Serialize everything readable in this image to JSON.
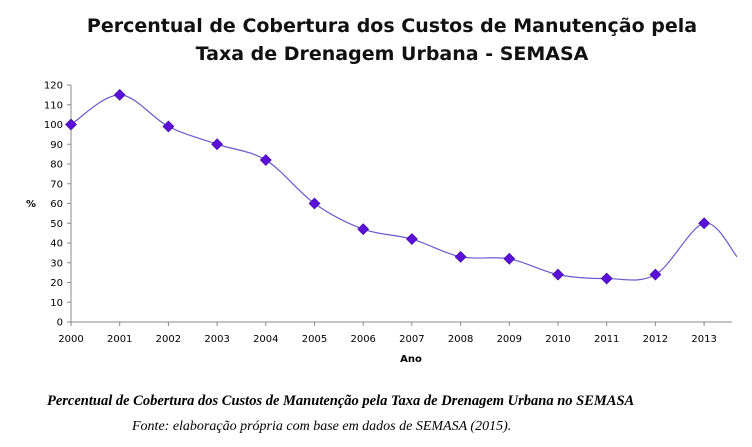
{
  "chart_data": {
    "type": "line",
    "title_lines": [
      "Percentual de Cobertura dos Custos de Manutenção pela",
      "Taxa de Drenagem Urbana - SEMASA"
    ],
    "xlabel": "Ano",
    "ylabel": "%",
    "categories": [
      "2000",
      "2001",
      "2002",
      "2003",
      "2004",
      "2005",
      "2006",
      "2007",
      "2008",
      "2009",
      "2010",
      "2011",
      "2012",
      "2013"
    ],
    "x_labels_shown": [
      "2000",
      "2001",
      "2002",
      "2003",
      "2004",
      "2005",
      "2006",
      "2007",
      "2008",
      "2009",
      "2010",
      "2011",
      "2012",
      "2013"
    ],
    "y_ticks": [
      0,
      10,
      20,
      30,
      40,
      50,
      60,
      70,
      80,
      90,
      100,
      110,
      120
    ],
    "ylim": [
      0,
      120
    ],
    "grid": false,
    "legend": "none",
    "series": [
      {
        "values": [
          100,
          115,
          99,
          90,
          82,
          60,
          47,
          42,
          33,
          32,
          24,
          22,
          24,
          50
        ],
        "trailing_value": 33,
        "color": "#6a5acd",
        "marker_color": "#5b10d9",
        "marker": "diamond"
      }
    ]
  },
  "caption": "Percentual de Cobertura dos Custos de Manutenção pela Taxa de Drenagem Urbana no SEMASA",
  "source": "Fonte: elaboração própria com base em dados de SEMASA (2015)."
}
